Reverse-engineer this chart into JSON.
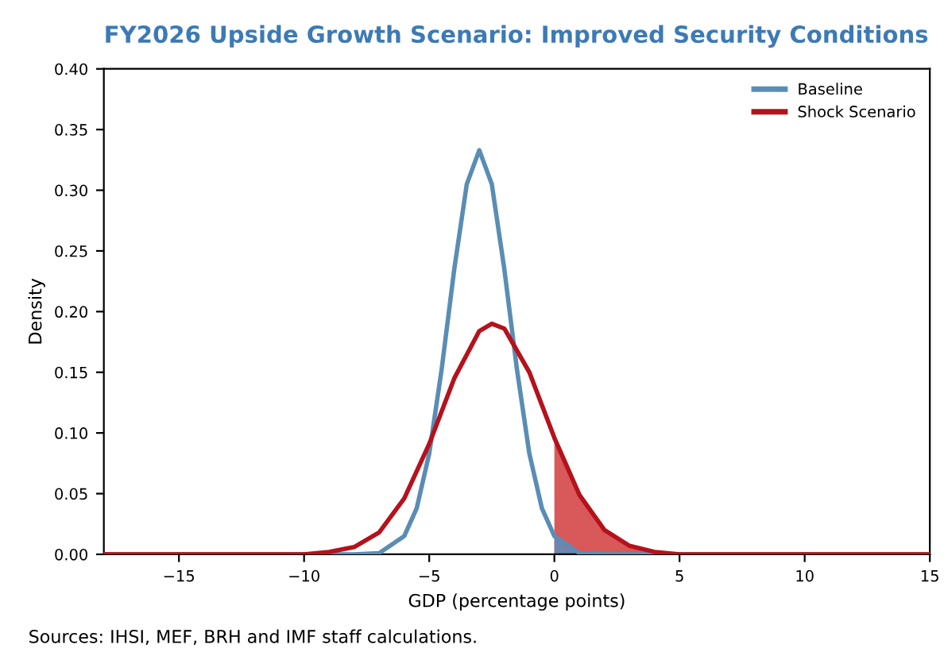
{
  "chart_data": {
    "type": "line",
    "title": "FY2026 Upside Growth Scenario: Improved Security Conditions",
    "xlabel": "GDP (percentage points)",
    "ylabel": "Density",
    "annotations": [
      "Sources: IHSI, MEF, BRH and IMF staff calculations."
    ],
    "series": [
      {
        "name": "Baseline",
        "color": "#5a8db5",
        "x": [
          -18,
          -10,
          -8,
          -7,
          -6,
          -5.5,
          -5,
          -4.5,
          -4,
          -3.5,
          -3,
          -2.5,
          -2,
          -1.5,
          -1,
          -0.5,
          0,
          1,
          2,
          4,
          15
        ],
        "values": [
          0,
          0,
          0,
          0.001,
          0.015,
          0.038,
          0.083,
          0.153,
          0.235,
          0.305,
          0.333,
          0.305,
          0.235,
          0.153,
          0.083,
          0.038,
          0.015,
          0.001,
          0,
          0,
          0
        ]
      },
      {
        "name": "Shock Scenario",
        "color": "#b5121b",
        "x": [
          -18,
          -12,
          -10,
          -9,
          -8,
          -7,
          -6,
          -5,
          -4,
          -3,
          -2.5,
          -2,
          -1,
          0,
          1,
          2,
          3,
          4,
          5,
          6,
          8,
          15
        ],
        "values": [
          0,
          0,
          0,
          0.002,
          0.006,
          0.018,
          0.046,
          0.091,
          0.145,
          0.184,
          0.19,
          0.186,
          0.15,
          0.096,
          0.049,
          0.02,
          0.007,
          0.002,
          0,
          0,
          0,
          0
        ]
      },
      {
        "type": "area",
        "color": "#d9585a",
        "x": [
          0,
          1,
          2,
          3,
          4,
          5
        ],
        "values": [
          0.096,
          0.049,
          0.02,
          0.007,
          0.002,
          0
        ]
      },
      {
        "type": "area",
        "color": "#6d86ad",
        "x": [
          0,
          0.5,
          1,
          1.5
        ],
        "values": [
          0.015,
          0.005,
          0.001,
          0
        ]
      }
    ],
    "xlim": [
      -18,
      15
    ],
    "ylim": [
      0,
      0.4
    ],
    "xticks": [
      {
        "value": -15,
        "label": "−15"
      },
      {
        "value": -10,
        "label": "−10"
      },
      {
        "value": -5,
        "label": "−5"
      },
      0,
      5,
      10,
      15
    ],
    "yticks": [
      {
        "value": 0,
        "label": "0.00"
      },
      {
        "value": 0.05,
        "label": "0.05"
      },
      {
        "value": 0.1,
        "label": "0.10"
      },
      {
        "value": 0.15,
        "label": "0.15"
      },
      {
        "value": 0.2,
        "label": "0.20"
      },
      {
        "value": 0.25,
        "label": "0.25"
      },
      {
        "value": 0.3,
        "label": "0.30"
      },
      {
        "value": 0.35,
        "label": "0.35"
      },
      {
        "value": 0.4,
        "label": "0.40"
      }
    ],
    "grid": false,
    "legend": "top right",
    "marker": "none",
    "line_style": "solid"
  }
}
